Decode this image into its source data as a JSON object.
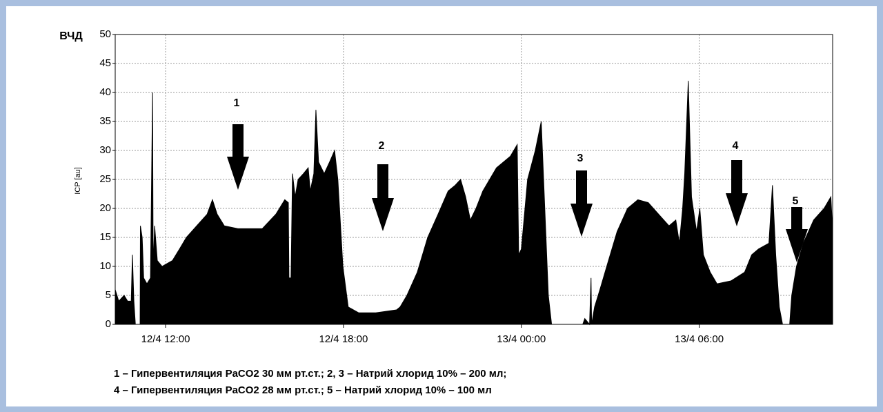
{
  "chart_data": {
    "type": "area",
    "y_label_short": "ВЧД",
    "ylabel": "ICP [au]",
    "color": "#000000",
    "grid": true,
    "xlim": [
      10.3,
      34.5
    ],
    "ylim": [
      0,
      50
    ],
    "yticks": [
      0,
      5,
      10,
      15,
      20,
      25,
      30,
      35,
      40,
      45,
      50
    ],
    "xticks": [
      {
        "value": 12,
        "label": "12/4 12:00"
      },
      {
        "value": 18,
        "label": "12/4 18:00"
      },
      {
        "value": 24,
        "label": "13/4 00:00"
      },
      {
        "value": 30,
        "label": "13/4 06:00"
      }
    ],
    "x": [
      10.3,
      10.42,
      10.6,
      10.72,
      10.84,
      10.88,
      10.93,
      10.98,
      11.14,
      11.15,
      11.21,
      11.26,
      11.37,
      11.49,
      11.56,
      11.58,
      11.63,
      11.72,
      11.88,
      12.23,
      12.47,
      12.7,
      13.05,
      13.4,
      13.58,
      13.74,
      13.98,
      14.44,
      15.26,
      15.72,
      16.02,
      16.14,
      16.16,
      16.23,
      16.28,
      16.37,
      16.47,
      16.65,
      16.81,
      16.88,
      17.0,
      17.07,
      17.16,
      17.35,
      17.53,
      17.7,
      17.81,
      17.98,
      18.16,
      18.51,
      19.09,
      19.79,
      19.91,
      20.14,
      20.49,
      20.84,
      21.19,
      21.53,
      21.77,
      21.95,
      22.12,
      22.28,
      22.47,
      22.7,
      23.16,
      23.63,
      23.86,
      23.91,
      24.0,
      24.21,
      24.47,
      24.67,
      24.79,
      24.91,
      25.02,
      26.07,
      26.14,
      26.3,
      26.35,
      26.37,
      26.47,
      26.65,
      26.88,
      27.23,
      27.58,
      27.93,
      28.28,
      28.63,
      28.98,
      29.21,
      29.33,
      29.44,
      29.51,
      29.63,
      29.74,
      29.91,
      30.02,
      30.14,
      30.37,
      30.6,
      31.07,
      31.53,
      31.77,
      32.0,
      32.35,
      32.47,
      32.58,
      32.7,
      32.81,
      33.05,
      33.12,
      33.28,
      33.51,
      33.86,
      34.21,
      34.44,
      34.49
    ],
    "values": [
      6,
      4,
      5,
      4,
      4,
      12,
      4,
      0,
      0,
      17,
      15,
      8,
      7,
      8,
      40,
      10,
      17,
      11,
      10,
      11,
      13,
      15,
      17,
      19,
      21.5,
      19,
      17,
      16.5,
      16.5,
      19,
      21.5,
      21,
      8,
      8,
      26,
      22,
      25,
      26,
      27,
      23,
      26,
      37,
      28,
      26,
      28,
      30,
      25,
      10,
      3,
      2,
      2,
      2.5,
      3,
      5,
      9,
      15,
      19,
      23,
      24,
      25,
      22,
      18,
      20,
      23,
      27,
      29,
      31,
      12,
      13,
      25,
      30,
      35,
      20,
      5,
      0,
      0,
      1,
      0,
      8,
      0,
      3,
      6,
      10,
      16,
      20,
      21.5,
      21,
      19,
      17,
      18,
      14,
      20,
      26,
      42,
      22,
      16,
      20,
      12,
      9,
      7,
      7.5,
      9,
      12,
      13,
      14,
      24,
      12,
      3,
      0,
      0,
      5,
      10,
      14,
      18,
      20,
      22,
      17
    ],
    "annotations": [
      "1",
      "2",
      "3",
      "4",
      "5"
    ],
    "notes": [
      "1 – Гипервентиляция PaCO2 30 мм рт.ст.; 2, 3 – Натрий хлорид 10% – 200 мл;",
      "4 – Гипервентиляция PaCO2 28 мм рт.ст.; 5 – Натрий хлорид 10% – 100 мл"
    ]
  }
}
